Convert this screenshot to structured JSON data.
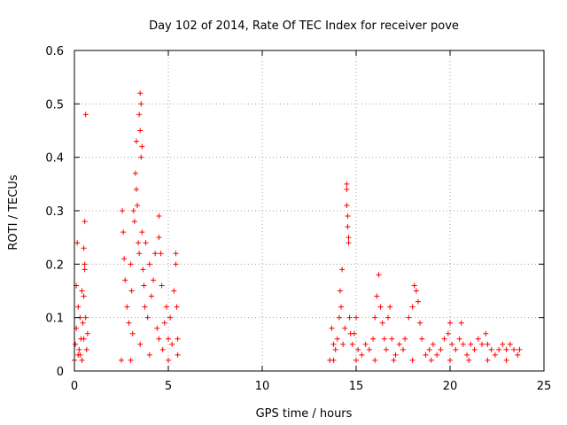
{
  "chart_data": {
    "type": "scatter",
    "title": "Day 102 of 2014, Rate Of TEC Index for receiver pove",
    "xlabel": "GPS time / hours",
    "ylabel": "ROTI / TECUs",
    "xlim": [
      0,
      25
    ],
    "ylim": [
      0,
      0.6
    ],
    "xticks": [
      0,
      5,
      10,
      15,
      20,
      25
    ],
    "xtick_labels": [
      "0",
      "5",
      "10",
      "15",
      "20",
      "25"
    ],
    "yticks": [
      0,
      0.1,
      0.2,
      0.3,
      0.4,
      0.5,
      0.6
    ],
    "ytick_labels": [
      "0",
      "0.1",
      "0.2",
      "0.3",
      "0.4",
      "0.5",
      "0.6"
    ],
    "grid": true,
    "marker": "+",
    "color": "#ff0000",
    "series": [
      {
        "values": [
          [
            0.0,
            0.02
          ],
          [
            0.05,
            0.05
          ],
          [
            0.1,
            0.08
          ],
          [
            0.1,
            0.16
          ],
          [
            0.15,
            0.24
          ],
          [
            0.2,
            0.12
          ],
          [
            0.25,
            0.04
          ],
          [
            0.3,
            0.03
          ],
          [
            0.35,
            0.06
          ],
          [
            0.4,
            0.02
          ],
          [
            0.45,
            0.09
          ],
          [
            0.5,
            0.14
          ],
          [
            0.5,
            0.23
          ],
          [
            0.55,
            0.28
          ],
          [
            0.55,
            0.19
          ],
          [
            0.6,
            0.48
          ],
          [
            0.6,
            0.1
          ],
          [
            0.65,
            0.04
          ],
          [
            0.7,
            0.07
          ],
          [
            0.5,
            0.06
          ],
          [
            0.3,
            0.1
          ],
          [
            0.2,
            0.03
          ],
          [
            0.4,
            0.15
          ],
          [
            0.55,
            0.2
          ],
          [
            2.5,
            0.02
          ],
          [
            2.55,
            0.3
          ],
          [
            2.6,
            0.26
          ],
          [
            2.65,
            0.21
          ],
          [
            2.7,
            0.17
          ],
          [
            2.8,
            0.12
          ],
          [
            2.9,
            0.09
          ],
          [
            3.0,
            0.2
          ],
          [
            3.05,
            0.15
          ],
          [
            3.1,
            0.07
          ],
          [
            3.15,
            0.3
          ],
          [
            3.2,
            0.28
          ],
          [
            3.25,
            0.37
          ],
          [
            3.3,
            0.34
          ],
          [
            3.3,
            0.43
          ],
          [
            3.35,
            0.31
          ],
          [
            3.4,
            0.24
          ],
          [
            3.45,
            0.22
          ],
          [
            3.45,
            0.48
          ],
          [
            3.5,
            0.52
          ],
          [
            3.5,
            0.45
          ],
          [
            3.55,
            0.4
          ],
          [
            3.55,
            0.5
          ],
          [
            3.6,
            0.42
          ],
          [
            3.6,
            0.26
          ],
          [
            3.65,
            0.19
          ],
          [
            3.7,
            0.16
          ],
          [
            3.75,
            0.12
          ],
          [
            3.8,
            0.24
          ],
          [
            3.9,
            0.1
          ],
          [
            4.0,
            0.2
          ],
          [
            4.1,
            0.14
          ],
          [
            4.2,
            0.17
          ],
          [
            4.3,
            0.22
          ],
          [
            4.4,
            0.08
          ],
          [
            4.5,
            0.25
          ],
          [
            4.5,
            0.29
          ],
          [
            4.6,
            0.22
          ],
          [
            4.65,
            0.16
          ],
          [
            4.7,
            0.04
          ],
          [
            4.8,
            0.09
          ],
          [
            4.9,
            0.12
          ],
          [
            5.0,
            0.06
          ],
          [
            5.1,
            0.1
          ],
          [
            5.2,
            0.05
          ],
          [
            5.3,
            0.15
          ],
          [
            5.4,
            0.2
          ],
          [
            5.4,
            0.22
          ],
          [
            5.45,
            0.12
          ],
          [
            5.5,
            0.06
          ],
          [
            5.5,
            0.03
          ],
          [
            3.0,
            0.02
          ],
          [
            3.5,
            0.05
          ],
          [
            4.0,
            0.03
          ],
          [
            4.5,
            0.06
          ],
          [
            5.0,
            0.02
          ],
          [
            13.6,
            0.02
          ],
          [
            13.7,
            0.08
          ],
          [
            13.8,
            0.05
          ],
          [
            13.9,
            0.04
          ],
          [
            14.0,
            0.06
          ],
          [
            14.1,
            0.1
          ],
          [
            14.15,
            0.15
          ],
          [
            14.2,
            0.12
          ],
          [
            14.25,
            0.19
          ],
          [
            14.3,
            0.05
          ],
          [
            14.4,
            0.08
          ],
          [
            14.5,
            0.35
          ],
          [
            14.5,
            0.34
          ],
          [
            14.5,
            0.31
          ],
          [
            14.55,
            0.29
          ],
          [
            14.55,
            0.27
          ],
          [
            14.6,
            0.25
          ],
          [
            14.6,
            0.24
          ],
          [
            14.65,
            0.1
          ],
          [
            14.7,
            0.07
          ],
          [
            14.8,
            0.05
          ],
          [
            14.9,
            0.07
          ],
          [
            15.0,
            0.1
          ],
          [
            15.1,
            0.04
          ],
          [
            15.3,
            0.03
          ],
          [
            15.5,
            0.05
          ],
          [
            15.7,
            0.04
          ],
          [
            15.9,
            0.06
          ],
          [
            16.0,
            0.1
          ],
          [
            16.1,
            0.14
          ],
          [
            16.2,
            0.18
          ],
          [
            16.3,
            0.12
          ],
          [
            16.4,
            0.09
          ],
          [
            16.5,
            0.06
          ],
          [
            16.6,
            0.04
          ],
          [
            16.7,
            0.1
          ],
          [
            16.8,
            0.12
          ],
          [
            16.9,
            0.06
          ],
          [
            17.1,
            0.03
          ],
          [
            17.3,
            0.05
          ],
          [
            17.5,
            0.04
          ],
          [
            17.6,
            0.06
          ],
          [
            17.8,
            0.1
          ],
          [
            18.0,
            0.12
          ],
          [
            18.1,
            0.16
          ],
          [
            18.2,
            0.15
          ],
          [
            18.3,
            0.13
          ],
          [
            18.4,
            0.09
          ],
          [
            18.5,
            0.06
          ],
          [
            18.7,
            0.03
          ],
          [
            18.9,
            0.04
          ],
          [
            19.1,
            0.05
          ],
          [
            19.3,
            0.03
          ],
          [
            19.5,
            0.04
          ],
          [
            19.7,
            0.06
          ],
          [
            19.9,
            0.07
          ],
          [
            20.0,
            0.09
          ],
          [
            20.1,
            0.05
          ],
          [
            20.3,
            0.04
          ],
          [
            20.5,
            0.06
          ],
          [
            20.6,
            0.09
          ],
          [
            20.7,
            0.05
          ],
          [
            20.9,
            0.03
          ],
          [
            21.1,
            0.05
          ],
          [
            21.3,
            0.04
          ],
          [
            21.5,
            0.06
          ],
          [
            21.7,
            0.05
          ],
          [
            21.9,
            0.07
          ],
          [
            22.0,
            0.05
          ],
          [
            22.2,
            0.04
          ],
          [
            22.4,
            0.03
          ],
          [
            22.6,
            0.04
          ],
          [
            22.8,
            0.05
          ],
          [
            23.0,
            0.04
          ],
          [
            23.2,
            0.05
          ],
          [
            23.4,
            0.04
          ],
          [
            23.6,
            0.03
          ],
          [
            23.7,
            0.04
          ],
          [
            13.8,
            0.02
          ],
          [
            15.0,
            0.02
          ],
          [
            16.0,
            0.02
          ],
          [
            17.0,
            0.02
          ],
          [
            18.0,
            0.02
          ],
          [
            19.0,
            0.02
          ],
          [
            20.0,
            0.02
          ],
          [
            21.0,
            0.02
          ],
          [
            22.0,
            0.02
          ],
          [
            23.0,
            0.02
          ]
        ]
      }
    ]
  }
}
